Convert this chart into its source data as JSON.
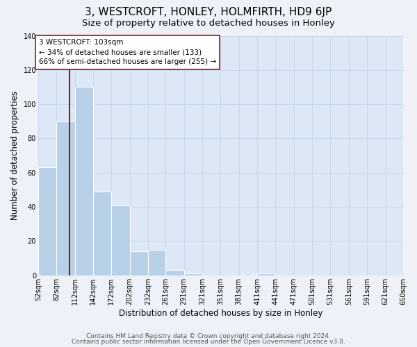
{
  "title": "3, WESTCROFT, HONLEY, HOLMFIRTH, HD9 6JP",
  "subtitle": "Size of property relative to detached houses in Honley",
  "xlabel": "Distribution of detached houses by size in Honley",
  "ylabel": "Number of detached properties",
  "bin_edges": [
    52,
    82,
    112,
    142,
    172,
    202,
    232,
    261,
    291,
    321,
    351,
    381,
    411,
    441,
    471,
    501,
    531,
    561,
    591,
    621,
    650
  ],
  "bin_labels": [
    "52sqm",
    "82sqm",
    "112sqm",
    "142sqm",
    "172sqm",
    "202sqm",
    "232sqm",
    "261sqm",
    "291sqm",
    "321sqm",
    "351sqm",
    "381sqm",
    "411sqm",
    "441sqm",
    "471sqm",
    "501sqm",
    "531sqm",
    "561sqm",
    "591sqm",
    "621sqm",
    "650sqm"
  ],
  "bar_heights": [
    63,
    90,
    110,
    49,
    41,
    14,
    15,
    3,
    1,
    0,
    0,
    0,
    1,
    0,
    0,
    0,
    0,
    0,
    0,
    0
  ],
  "bar_color": "#b8d0e8",
  "bar_edge_color": "#ffffff",
  "property_line_x": 103,
  "property_line_color": "#cc0000",
  "annotation_line1": "3 WESTCROFT: 103sqm",
  "annotation_line2": "← 34% of detached houses are smaller (133)",
  "annotation_line3": "66% of semi-detached houses are larger (255) →",
  "annotation_box_color": "#ffffff",
  "annotation_box_edge": "#cc0000",
  "ylim": [
    0,
    140
  ],
  "yticks": [
    0,
    20,
    40,
    60,
    80,
    100,
    120,
    140
  ],
  "footer_line1": "Contains HM Land Registry data © Crown copyright and database right 2024.",
  "footer_line2": "Contains public sector information licensed under the Open Government Licence v3.0.",
  "background_color": "#eef2f8",
  "plot_background_color": "#dce8f5",
  "grid_color": "#c8d8ec",
  "title_fontsize": 11,
  "subtitle_fontsize": 9.5,
  "axis_label_fontsize": 8.5,
  "tick_fontsize": 7,
  "annotation_fontsize": 7.5,
  "footer_fontsize": 6.5
}
